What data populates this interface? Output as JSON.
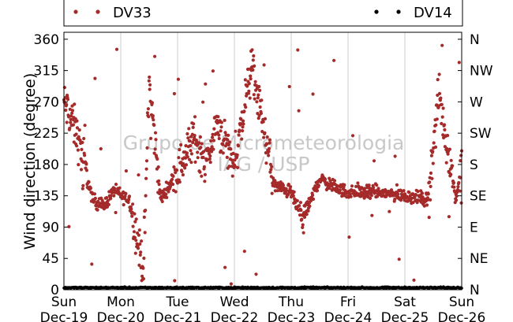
{
  "chart_data": {
    "type": "scatter",
    "ylabel": "Wind direction (degree)",
    "ylim": [
      0,
      370
    ],
    "xlim": [
      "Dec-19",
      "Dec-26"
    ],
    "grid": {
      "vertical": true,
      "horizontal": false
    },
    "legend_placement": "top",
    "watermark": [
      "Grupo de Micrometeorologia",
      "IAG / USP"
    ],
    "y_ticks": [
      0,
      45,
      90,
      135,
      180,
      225,
      270,
      315,
      360
    ],
    "y_ticks_right": [
      "N",
      "NE",
      "E",
      "SE",
      "S",
      "SW",
      "W",
      "NW",
      "N"
    ],
    "x_ticks": [
      {
        "day": "Sun",
        "date": "Dec-19"
      },
      {
        "day": "Mon",
        "date": "Dec-20"
      },
      {
        "day": "Tue",
        "date": "Dec-21"
      },
      {
        "day": "Wed",
        "date": "Dec-22"
      },
      {
        "day": "Thu",
        "date": "Dec-23"
      },
      {
        "day": "Fri",
        "date": "Dec-24"
      },
      {
        "day": "Sat",
        "date": "Dec-25"
      },
      {
        "day": "Sun",
        "date": "Dec-26"
      }
    ],
    "series": [
      {
        "name": "DV33",
        "color": "#a52a2a",
        "description": "Approximate daily trend of wind direction; points scattered around these values",
        "x_days": [
          0.0,
          0.1,
          0.2,
          0.3,
          0.5,
          0.7,
          0.9,
          1.0,
          1.15,
          1.3,
          1.4,
          1.5,
          1.7,
          2.0,
          2.3,
          2.5,
          2.7,
          3.0,
          3.3,
          3.5,
          3.7,
          4.0,
          4.2,
          4.5,
          4.7,
          5.0,
          5.5,
          6.0,
          6.4,
          6.6,
          6.9,
          7.0
        ],
        "values": [
          270,
          250,
          230,
          200,
          130,
          120,
          145,
          135,
          130,
          70,
          30,
          300,
          130,
          170,
          220,
          180,
          240,
          180,
          320,
          240,
          150,
          140,
          100,
          160,
          150,
          140,
          140,
          135,
          130,
          280,
          130,
          180
        ]
      },
      {
        "name": "DV14",
        "color": "#000000",
        "description": "Near-zero readings along the bottom of the plot",
        "x_days": [
          0.0,
          7.0
        ],
        "values": [
          3,
          3
        ]
      }
    ]
  }
}
